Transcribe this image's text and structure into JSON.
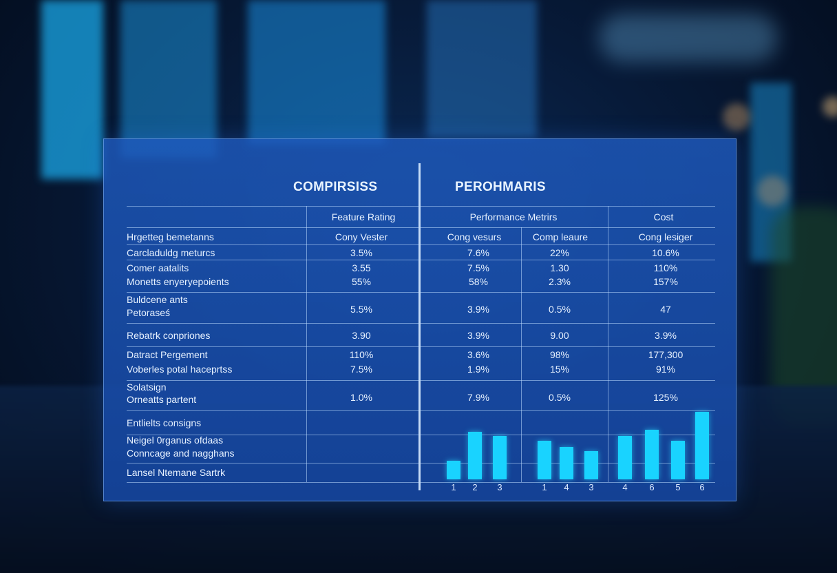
{
  "panel": {
    "title_left": "COMPIRSISS",
    "title_right": "PEROHMARIS"
  },
  "table": {
    "group_headers": [
      "Feature Rating",
      "Performance Metrirs",
      "Cost"
    ],
    "sub_headers": [
      "Hrgetteg bemetanns",
      "Cony Vester",
      "Cong vesurs",
      "Comp leaure",
      "Cong lesiger"
    ],
    "rows": [
      {
        "label": [
          "Carcladuldg meturcs"
        ],
        "values": [
          "3.5%",
          "7.6%",
          "22%",
          "10.6%"
        ]
      },
      {
        "label": [
          "Comer aatalits",
          "Monetts enyeryepoients"
        ],
        "values": [
          "3.55",
          "7.5%",
          "1.30",
          "110%"
        ],
        "values2": [
          "55%",
          "58%",
          "2.3%",
          "157%"
        ]
      },
      {
        "label": [
          "Buldcene ants",
          "Petoraseś"
        ],
        "values": [
          "5.5%",
          "3.9%",
          "0.5%",
          "47"
        ]
      },
      {
        "label": [
          "Rebatrk conpriones"
        ],
        "values": [
          "3.90",
          "3.9%",
          "9.00",
          "3.9%"
        ]
      },
      {
        "label": [
          "Datract Pergement",
          "Voberles potal haceprtss"
        ],
        "values": [
          "110%",
          "3.6%",
          "98%",
          "177,300"
        ],
        "values2": [
          "7.5%",
          "1.9%",
          "15%",
          "91%"
        ]
      },
      {
        "label": [
          "Solatsign",
          "Orneatts partent"
        ],
        "values": [
          "1.0%",
          "7.9%",
          "0.5%",
          "125%"
        ]
      }
    ],
    "bottom_labels": [
      "Entlielts consigns",
      "Neigel 0rganus ofdaas",
      "Conncage and nagghans",
      "Lansel Ntemane Sartrk"
    ]
  },
  "chart_data": [
    {
      "type": "bar",
      "categories": [
        "1",
        "2",
        "3"
      ],
      "values": [
        27,
        69,
        63
      ],
      "ylim": [
        0,
        100
      ]
    },
    {
      "type": "bar",
      "categories": [
        "1",
        "4",
        "3"
      ],
      "values": [
        56,
        47,
        41
      ],
      "ylim": [
        0,
        100
      ]
    },
    {
      "type": "bar",
      "categories": [
        "4",
        "6",
        "5",
        "6"
      ],
      "values": [
        63,
        72,
        56,
        98
      ],
      "ylim": [
        0,
        100
      ]
    }
  ],
  "colors": {
    "accent": "#19d3ff",
    "panel": "#1e5abe"
  }
}
